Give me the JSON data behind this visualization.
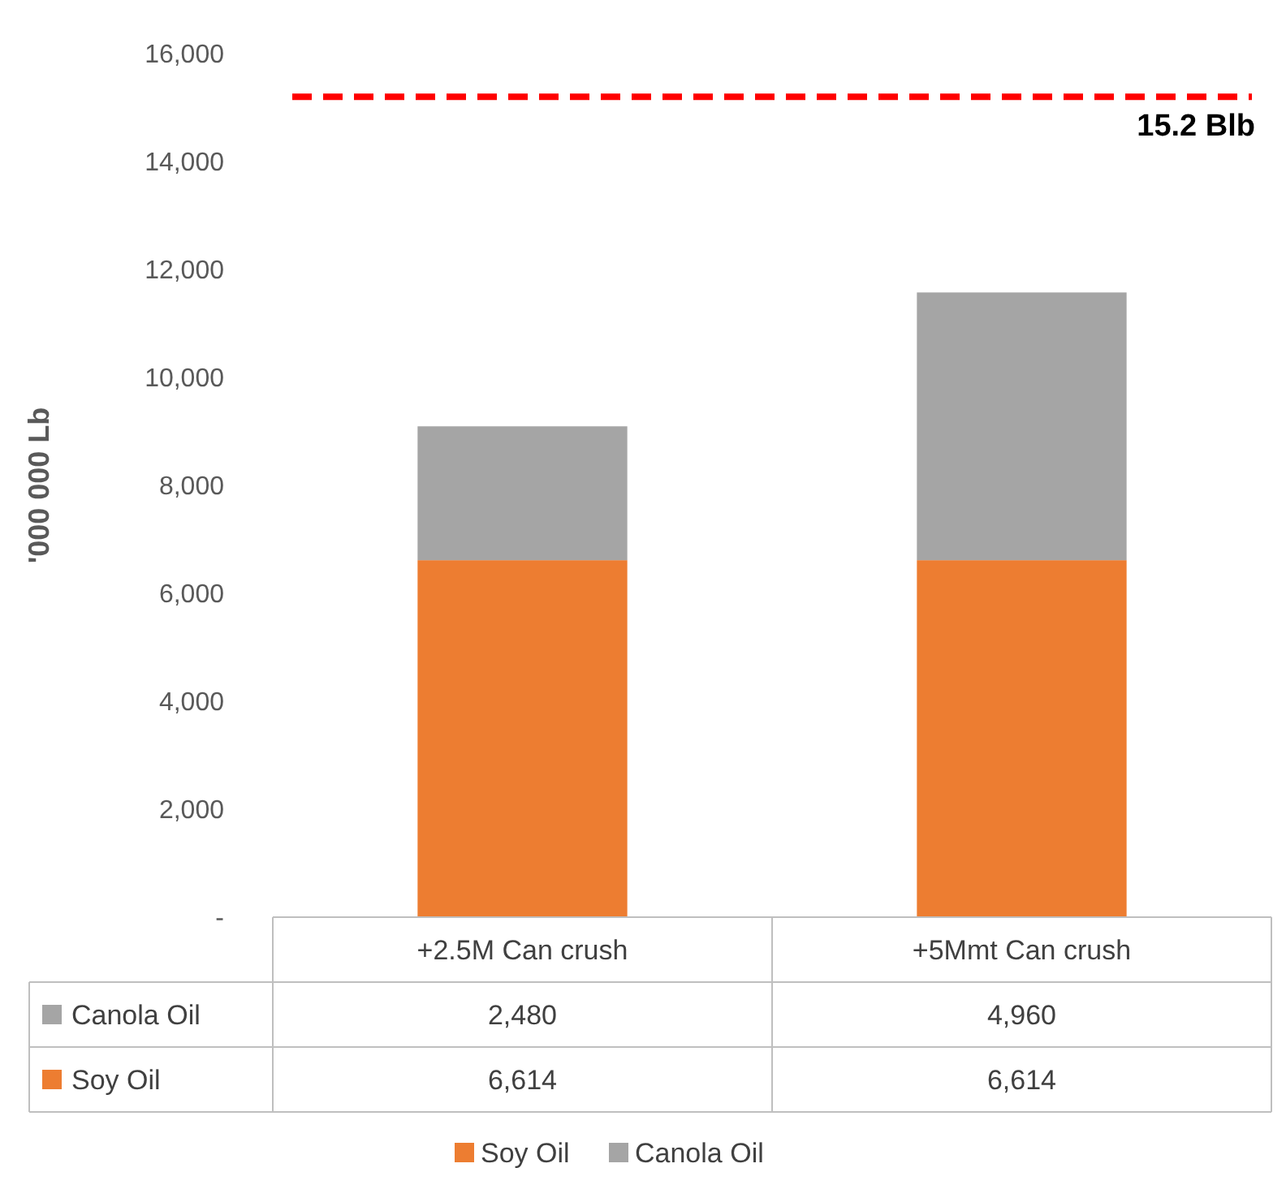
{
  "chart_data": {
    "type": "bar",
    "stacked": true,
    "ylabel": "'000 000 Lb",
    "categories": [
      "+2.5M Can crush",
      "+5Mmt Can crush"
    ],
    "series": [
      {
        "name": "Soy Oil",
        "color": "#ed7d31",
        "values": [
          6614,
          6614
        ],
        "value_labels": [
          "6,614",
          "6,614"
        ]
      },
      {
        "name": "Canola Oil",
        "color": "#a5a5a5",
        "values": [
          2480,
          4960
        ],
        "value_labels": [
          "2,480",
          "4,960"
        ]
      }
    ],
    "ylim": [
      0,
      16000
    ],
    "yticks": [
      {
        "value": 0,
        "label": "-"
      },
      {
        "value": 2000,
        "label": "2,000"
      },
      {
        "value": 4000,
        "label": "4,000"
      },
      {
        "value": 6000,
        "label": "6,000"
      },
      {
        "value": 8000,
        "label": "8,000"
      },
      {
        "value": 10000,
        "label": "10,000"
      },
      {
        "value": 12000,
        "label": "12,000"
      },
      {
        "value": 14000,
        "label": "14,000"
      },
      {
        "value": 16000,
        "label": "16,000"
      }
    ],
    "ref_lines": [
      {
        "axis": "y",
        "value": 15200,
        "label": "15.2 Blb",
        "color": "#ff0000",
        "line_style": "dashed"
      }
    ],
    "legend": "bottom",
    "grid": false
  }
}
